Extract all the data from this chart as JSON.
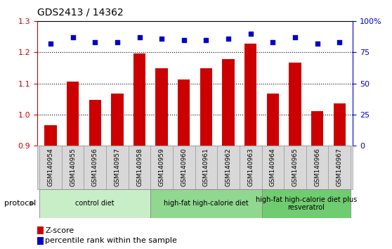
{
  "title": "GDS2413 / 14362",
  "samples": [
    "GSM140954",
    "GSM140955",
    "GSM140956",
    "GSM140957",
    "GSM140958",
    "GSM140959",
    "GSM140960",
    "GSM140961",
    "GSM140962",
    "GSM140963",
    "GSM140964",
    "GSM140965",
    "GSM140966",
    "GSM140967"
  ],
  "z_scores": [
    0.965,
    1.105,
    1.048,
    1.068,
    1.197,
    1.148,
    1.112,
    1.148,
    1.178,
    1.228,
    1.068,
    1.168,
    1.012,
    1.035
  ],
  "percentile_ranks": [
    82,
    87,
    83,
    83,
    87,
    86,
    85,
    85,
    86,
    90,
    83,
    87,
    82,
    83
  ],
  "bar_color": "#CC0000",
  "dot_color": "#0000CC",
  "ylim_left": [
    0.9,
    1.3
  ],
  "ylim_right": [
    0,
    100
  ],
  "yticks_left": [
    0.9,
    1.0,
    1.1,
    1.2,
    1.3
  ],
  "yticks_right": [
    0,
    25,
    50,
    75,
    100
  ],
  "groups": [
    {
      "label": "control diet",
      "start": 0,
      "end": 4,
      "color": "#C8EEC8"
    },
    {
      "label": "high-fat high-calorie diet",
      "start": 5,
      "end": 9,
      "color": "#90D890"
    },
    {
      "label": "high-fat high-calorie diet plus\nresveratrol",
      "start": 10,
      "end": 13,
      "color": "#70CC70"
    }
  ],
  "protocol_label": "protocol",
  "legend_zscore": "Z-score",
  "legend_percentile": "percentile rank within the sample",
  "tick_area_color": "#D8D8D8"
}
